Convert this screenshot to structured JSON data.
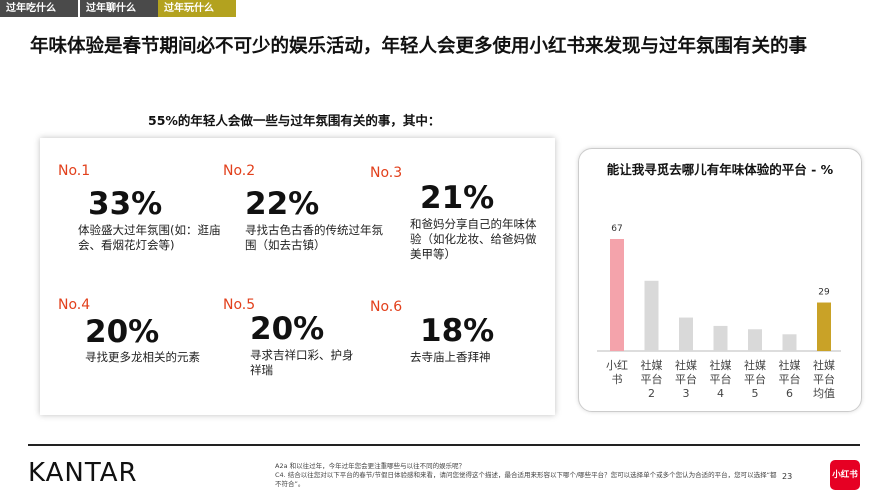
{
  "tabs": [
    "过年吃什么",
    "过年聊什么",
    "过年玩什么"
  ],
  "title": "年味体验是春节期间必不可少的娱乐活动，年轻人会更多使用小红书来发现与过年氛围有关的事",
  "subtitle": "55%的年轻人会做一些与过年氛围有关的事，其中：",
  "items": [
    {
      "rank": "No.1",
      "percent": "33%",
      "text": "体验盛大过年氛围(如：逛庙会、看烟花灯会等)"
    },
    {
      "rank": "No.2",
      "percent": "22%",
      "text": "寻找古色古香的传统过年氛围（如去古镇）"
    },
    {
      "rank": "No.3",
      "percent": "21%",
      "text": "和爸妈分享自己的年味体验（如化龙妆、给爸妈做美甲等）"
    },
    {
      "rank": "No.4",
      "percent": "20%",
      "text": "寻找更多龙相关的元素"
    },
    {
      "rank": "No.5",
      "percent": "20%",
      "text": "寻求吉祥口彩、护身祥瑞"
    },
    {
      "rank": "No.6",
      "percent": "18%",
      "text": "去寺庙上香拜神"
    }
  ],
  "chart_data": {
    "type": "bar",
    "title": "能让我寻觅去哪儿有年味体验的平台 - %",
    "categories": [
      "小红书",
      "社媒平台2",
      "社媒平台3",
      "社媒平台4",
      "社媒平台5",
      "社媒平台6",
      "社媒平台均值"
    ],
    "values": [
      67,
      42,
      20,
      15,
      13,
      10,
      29
    ],
    "value_labels": [
      "67",
      null,
      null,
      null,
      null,
      null,
      "29"
    ],
    "colors": [
      "#f4a3ab",
      "#d9d9d9",
      "#d9d9d9",
      "#d9d9d9",
      "#d9d9d9",
      "#d9d9d9",
      "#c9a227"
    ]
  },
  "footer": {
    "brand": "KANTAR",
    "notes": [
      "A2a 和以往过年，今年过年您会更注重哪些与以往不同的娱乐呢？",
      "C4. 结合以往您对以下平台的春节/节假日体验感和来看，请问您觉得这个描述，最合适用来形容以下哪个/哪些平台？您可以选择单个或多个您认为合适的平台，您可以选择“都不符合”。"
    ],
    "page": "23",
    "logo": "小红书"
  }
}
